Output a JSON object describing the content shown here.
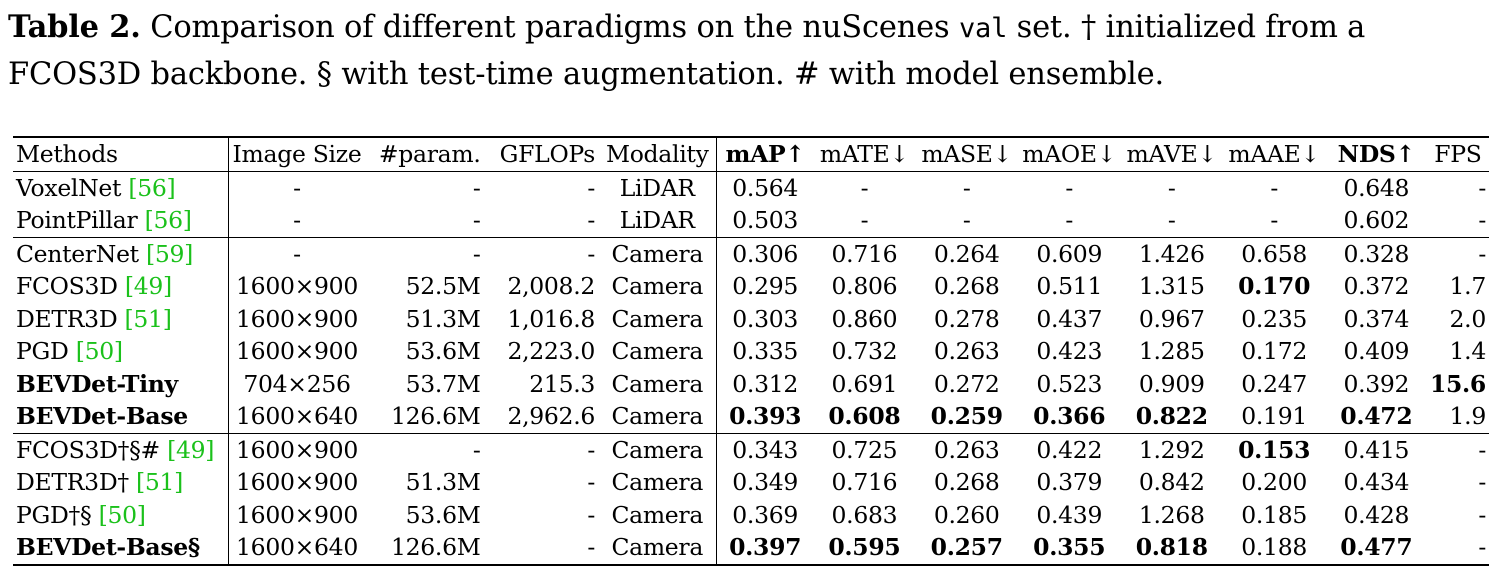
{
  "caption": {
    "label": "Table 2.",
    "text_1": " Comparison of different paradigms on the nuScenes ",
    "mono": "val",
    "text_2": " set. † initialized from a FCOS3D backbone. § with test-time augmentation. # with model ensemble."
  },
  "table": {
    "headers": [
      "Methods",
      "Image Size",
      "#param.",
      "GFLOPs",
      "Modality",
      "mAP↑",
      "mATE↓",
      "mASE↓",
      "mAOE↓",
      "mAVE↓",
      "mAAE↓",
      "NDS↑",
      "FPS"
    ],
    "rows": [
      {
        "method": "VoxelNet ",
        "cite": "[56]",
        "size": "-",
        "param": "-",
        "gflops": "-",
        "modality": "LiDAR",
        "map": "0.564",
        "mate": "-",
        "mase": "-",
        "maoe": "-",
        "mave": "-",
        "maae": "-",
        "nds": "0.648",
        "fps": "-"
      },
      {
        "method": "PointPillar ",
        "cite": "[56]",
        "size": "-",
        "param": "-",
        "gflops": "-",
        "modality": "LiDAR",
        "map": "0.503",
        "mate": "-",
        "mase": "-",
        "maoe": "-",
        "mave": "-",
        "maae": "-",
        "nds": "0.602",
        "fps": "-"
      },
      {
        "method": "CenterNet ",
        "cite": "[59]",
        "size": "-",
        "param": "-",
        "gflops": "-",
        "modality": "Camera",
        "map": "0.306",
        "mate": "0.716",
        "mase": "0.264",
        "maoe": "0.609",
        "mave": "1.426",
        "maae": "0.658",
        "nds": "0.328",
        "fps": "-"
      },
      {
        "method": "FCOS3D ",
        "cite": "[49]",
        "size": "1600×900",
        "param": "52.5M",
        "gflops": "2,008.2",
        "modality": "Camera",
        "map": "0.295",
        "mate": "0.806",
        "mase": "0.268",
        "maoe": "0.511",
        "mave": "1.315",
        "maae": "0.170",
        "nds": "0.372",
        "fps": "1.7"
      },
      {
        "method": "DETR3D ",
        "cite": "[51]",
        "size": "1600×900",
        "param": "51.3M",
        "gflops": "1,016.8",
        "modality": "Camera",
        "map": "0.303",
        "mate": "0.860",
        "mase": "0.278",
        "maoe": "0.437",
        "mave": "0.967",
        "maae": "0.235",
        "nds": "0.374",
        "fps": "2.0"
      },
      {
        "method": "PGD ",
        "cite": "[50]",
        "size": "1600×900",
        "param": "53.6M",
        "gflops": "2,223.0",
        "modality": "Camera",
        "map": "0.335",
        "mate": "0.732",
        "mase": "0.263",
        "maoe": "0.423",
        "mave": "1.285",
        "maae": "0.172",
        "nds": "0.409",
        "fps": "1.4"
      },
      {
        "method": "BEVDet-Tiny",
        "cite": "",
        "size": "704×256",
        "param": "53.7M",
        "gflops": "215.3",
        "modality": "Camera",
        "map": "0.312",
        "mate": "0.691",
        "mase": "0.272",
        "maoe": "0.523",
        "mave": "0.909",
        "maae": "0.247",
        "nds": "0.392",
        "fps": "15.6"
      },
      {
        "method": "BEVDet-Base",
        "cite": "",
        "size": "1600×640",
        "param": "126.6M",
        "gflops": "2,962.6",
        "modality": "Camera",
        "map": "0.393",
        "mate": "0.608",
        "mase": "0.259",
        "maoe": "0.366",
        "mave": "0.822",
        "maae": "0.191",
        "nds": "0.472",
        "fps": "1.9"
      },
      {
        "method": "FCOS3D†§# ",
        "cite": "[49]",
        "size": "1600×900",
        "param": "-",
        "gflops": "-",
        "modality": "Camera",
        "map": "0.343",
        "mate": "0.725",
        "mase": "0.263",
        "maoe": "0.422",
        "mave": "1.292",
        "maae": "0.153",
        "nds": "0.415",
        "fps": "-"
      },
      {
        "method": "DETR3D† ",
        "cite": "[51]",
        "size": "1600×900",
        "param": "51.3M",
        "gflops": "-",
        "modality": "Camera",
        "map": "0.349",
        "mate": "0.716",
        "mase": "0.268",
        "maoe": "0.379",
        "mave": "0.842",
        "maae": "0.200",
        "nds": "0.434",
        "fps": "-"
      },
      {
        "method": "PGD†§ ",
        "cite": "[50]",
        "size": "1600×900",
        "param": "53.6M",
        "gflops": "-",
        "modality": "Camera",
        "map": "0.369",
        "mate": "0.683",
        "mase": "0.260",
        "maoe": "0.439",
        "mave": "1.268",
        "maae": "0.185",
        "nds": "0.428",
        "fps": "-"
      },
      {
        "method": "BEVDet-Base§",
        "cite": "",
        "size": "1600×640",
        "param": "126.6M",
        "gflops": "-",
        "modality": "Camera",
        "map": "0.397",
        "mate": "0.595",
        "mase": "0.257",
        "maoe": "0.355",
        "mave": "0.818",
        "maae": "0.188",
        "nds": "0.477",
        "fps": "-"
      }
    ]
  }
}
